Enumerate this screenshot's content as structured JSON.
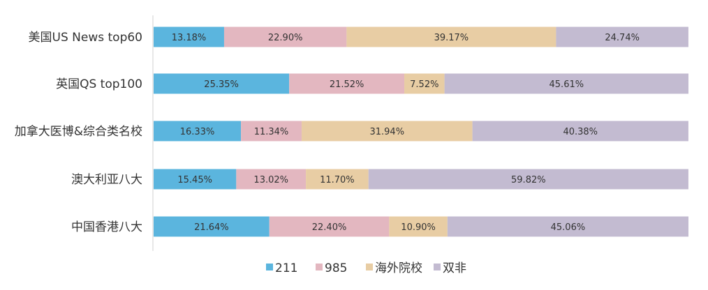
{
  "chart_data": {
    "type": "bar",
    "orientation": "horizontal",
    "stacked": "percent",
    "categories": [
      "美国US News top60",
      "英国QS top100",
      "加拿大医博&综合类名校",
      "澳大利亚八大",
      "中国香港八大"
    ],
    "series": [
      {
        "name": "211",
        "color": "#5bb5de",
        "values": [
          13.18,
          25.35,
          16.33,
          15.45,
          21.64
        ],
        "labels": [
          "13.18%",
          "25.35%",
          "16.33%",
          "15.45%",
          "21.64%"
        ]
      },
      {
        "name": "985",
        "color": "#e3b7c0",
        "values": [
          22.9,
          21.52,
          11.34,
          13.02,
          22.4
        ],
        "labels": [
          "22.90%",
          "21.52%",
          "11.34%",
          "13.02%",
          "22.40%"
        ]
      },
      {
        "name": "海外院校",
        "color": "#e8cda4",
        "values": [
          39.17,
          7.52,
          31.94,
          11.7,
          10.9
        ],
        "labels": [
          "39.17%",
          "7.52%",
          "31.94%",
          "11.70%",
          "10.90%"
        ]
      },
      {
        "name": "双非",
        "color": "#c3bbd1",
        "values": [
          24.74,
          45.61,
          40.38,
          59.82,
          45.06
        ],
        "labels": [
          "24.74%",
          "45.61%",
          "40.38%",
          "59.82%",
          "45.06%"
        ]
      }
    ],
    "xlim": [
      0,
      100
    ],
    "grid": false,
    "legend_position": "bottom",
    "title": "",
    "xlabel": "",
    "ylabel": ""
  }
}
